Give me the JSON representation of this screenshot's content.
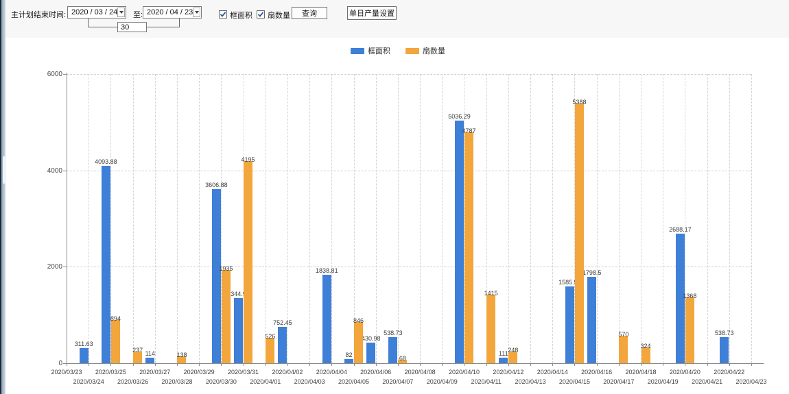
{
  "topbar": {
    "title_label": "主计划结束时间:",
    "date_from": "2020 / 03 / 24",
    "to_label": "至:",
    "date_to": "2020 / 04 / 23",
    "days_between": "30",
    "checkbox_area_label": "框面积",
    "checkbox_fan_label": "扇数量",
    "checkbox_area_checked": true,
    "checkbox_fan_checked": true,
    "query_button": "查询",
    "daily_output_button": "单日产量设置"
  },
  "legend": {
    "series1_label": "框面积",
    "series2_label": "扇数量"
  },
  "colors": {
    "blue": "#3e7fd8",
    "orange": "#f2a63b",
    "check": "#2b579a"
  },
  "chart_data": {
    "type": "bar",
    "title": "",
    "xlabel": "",
    "ylabel": "",
    "ylim": [
      0,
      6000
    ],
    "yticks": [
      0,
      2000,
      4000,
      6000
    ],
    "grid": "dashed",
    "legend_position": "top-center",
    "categories": [
      "2020/03/23",
      "2020/03/24",
      "2020/03/25",
      "2020/03/26",
      "2020/03/27",
      "2020/03/28",
      "2020/03/29",
      "2020/03/30",
      "2020/03/31",
      "2020/04/01",
      "2020/04/02",
      "2020/04/03",
      "2020/04/04",
      "2020/04/05",
      "2020/04/06",
      "2020/04/07",
      "2020/04/08",
      "2020/04/09",
      "2020/04/10",
      "2020/04/11",
      "2020/04/12",
      "2020/04/13",
      "2020/04/14",
      "2020/04/15",
      "2020/04/16",
      "2020/04/17",
      "2020/04/18",
      "2020/04/19",
      "2020/04/20",
      "2020/04/21",
      "2020/04/22",
      "2020/04/23"
    ],
    "series": [
      {
        "name": "框面积",
        "color": "#3e7fd8",
        "values": [
          null,
          311.63,
          4093.88,
          null,
          114,
          null,
          null,
          3606.88,
          1344.95,
          null,
          752.45,
          null,
          1838.81,
          82,
          430.98,
          538.73,
          null,
          null,
          5036.29,
          null,
          111,
          null,
          null,
          1585.96,
          1798.5,
          null,
          null,
          null,
          2688.17,
          null,
          538.73,
          null
        ]
      },
      {
        "name": "扇数量",
        "color": "#f2a63b",
        "values": [
          null,
          null,
          894,
          237,
          null,
          138,
          null,
          1935,
          4195,
          526,
          null,
          null,
          null,
          846,
          null,
          68,
          null,
          null,
          4787,
          1415,
          248,
          null,
          null,
          5388,
          null,
          570,
          324,
          null,
          1368,
          null,
          null,
          null
        ]
      }
    ]
  }
}
